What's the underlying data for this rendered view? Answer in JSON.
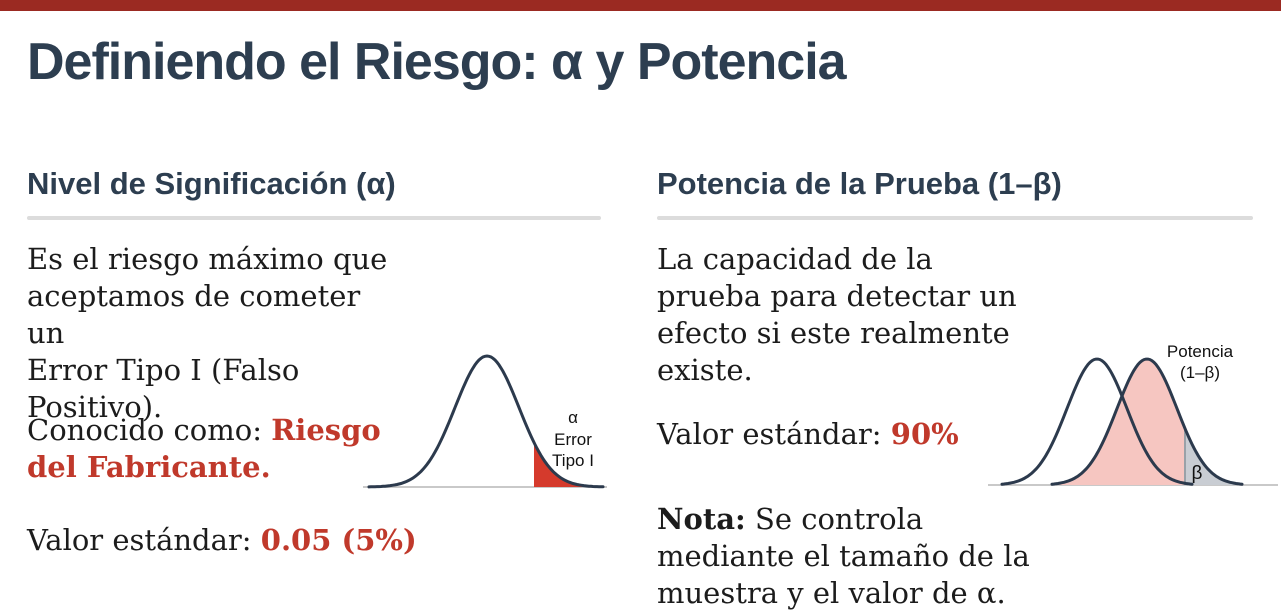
{
  "slide_title": "Definiendo el Riesgo: α y Potencia",
  "colors": {
    "top-bar": "#9b2a22",
    "heading-navy": "#2d3e50",
    "body-text": "#1c1c1c",
    "accent-red": "#c0392b",
    "tail-red": "#d53a2c",
    "power-pink": "#f6c6c1",
    "beta-gray": "#c9cdd3",
    "curve-navy": "#2c3a4d",
    "baseline-gray": "#c9c9c9",
    "crit-gray": "#9aa1a8",
    "rule-gray": "#dcdcdc",
    "label-black": "#111111"
  },
  "left_panel": {
    "heading": "Nivel de Significación (α)",
    "body": "Es el riesgo máximo que\naceptamos de cometer un\nError Tipo I (Falso\nPositivo).",
    "known_as_label": "Conocido como: ",
    "known_as_value": "Riesgo\ndel Fabricante.",
    "standard_label": "Valor estándar: ",
    "standard_value": "0.05 (5%)",
    "diagram": {
      "alpha_label": "α",
      "error_label_line1": "Error",
      "error_label_line2": "Tipo I"
    }
  },
  "right_panel": {
    "heading": "Potencia de la Prueba (1–β)",
    "body": "La capacidad de la\nprueba para detectar un\nefecto si este realmente\nexiste.",
    "standard_label": "Valor estándar: ",
    "standard_value": "90%",
    "note_label": "Nota:",
    "note_body": " Se controla\nmediante el tamaño de la\nmuestra y el valor de α.",
    "diagram": {
      "power_label_line1": "Potencia",
      "power_label_line2": "(1–β)",
      "beta_label": "β"
    }
  }
}
